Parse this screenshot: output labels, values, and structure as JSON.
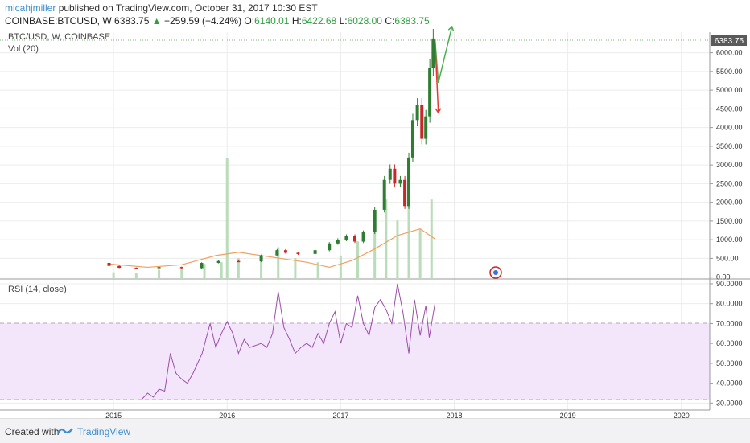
{
  "header": {
    "author": "micahjmiller",
    "published": "published on TradingView.com, October 31, 2017 10:30 EST",
    "symbol": "COINBASE:BTCUSD, W",
    "last": "6383.75",
    "change_arrow": "▲",
    "change": "+259.59 (+4.24%)",
    "o_label": "O:",
    "o_val": "6140.01",
    "h_label": "H:",
    "h_val": "6422.68",
    "l_label": "L:",
    "l_val": "6028.00",
    "c_label": "C:",
    "c_val": "6383.75"
  },
  "footer": {
    "created": "Created with",
    "brand": "TradingView"
  },
  "colors": {
    "up": "#2e7d32",
    "down": "#c62828",
    "volume": "#b9dcb9",
    "volume_ma": "#f0a060",
    "rsi": "#9c4fa8",
    "rsi_band": "#f3e6fb",
    "arrow_up": "#4caf50",
    "arrow_down": "#e53935",
    "price_tag": "#5a5a5a"
  },
  "chart_data": [
    {
      "type": "candlestick",
      "title": "BTC/USD, W, COINBASE",
      "subtitle": "Vol (20)",
      "last_price_label": "6383.75",
      "x_ticks": [
        "2015",
        "2016",
        "2017",
        "2018",
        "2019",
        "2020"
      ],
      "xlim": [
        2014.0,
        2020.25
      ],
      "y_ticks": [
        "6000.00",
        "5500.00",
        "5000.00",
        "4500.00",
        "4000.00",
        "3500.00",
        "3000.00",
        "2500.00",
        "2000.00",
        "1500.00",
        "1000.00",
        "500.00",
        "0.00"
      ],
      "ylim": [
        -50,
        6550
      ],
      "price_path": [
        [
          2014.92,
          380
        ],
        [
          2015.0,
          300
        ],
        [
          2015.1,
          250
        ],
        [
          2015.3,
          240
        ],
        [
          2015.5,
          270
        ],
        [
          2015.7,
          240
        ],
        [
          2015.85,
          380
        ],
        [
          2016.0,
          430
        ],
        [
          2016.2,
          420
        ],
        [
          2016.4,
          580
        ],
        [
          2016.48,
          720
        ],
        [
          2016.55,
          650
        ],
        [
          2016.7,
          620
        ],
        [
          2016.85,
          720
        ],
        [
          2016.95,
          900
        ],
        [
          2017.0,
          1000
        ],
        [
          2017.1,
          1100
        ],
        [
          2017.15,
          950
        ],
        [
          2017.25,
          1200
        ],
        [
          2017.35,
          1800
        ],
        [
          2017.42,
          2600
        ],
        [
          2017.45,
          2900
        ],
        [
          2017.5,
          2500
        ],
        [
          2017.55,
          2600
        ],
        [
          2017.58,
          1900
        ],
        [
          2017.62,
          3200
        ],
        [
          2017.65,
          4200
        ],
        [
          2017.7,
          4600
        ],
        [
          2017.73,
          3700
        ],
        [
          2017.77,
          4300
        ],
        [
          2017.8,
          5600
        ],
        [
          2017.83,
          6380
        ]
      ],
      "volume": [
        [
          2015.0,
          80
        ],
        [
          2015.2,
          70
        ],
        [
          2015.4,
          110
        ],
        [
          2015.6,
          120
        ],
        [
          2015.8,
          180
        ],
        [
          2015.95,
          200
        ],
        [
          2016.0,
          1450
        ],
        [
          2016.1,
          250
        ],
        [
          2016.3,
          220
        ],
        [
          2016.45,
          380
        ],
        [
          2016.6,
          250
        ],
        [
          2016.8,
          200
        ],
        [
          2017.0,
          280
        ],
        [
          2017.15,
          450
        ],
        [
          2017.3,
          600
        ],
        [
          2017.4,
          950
        ],
        [
          2017.5,
          700
        ],
        [
          2017.6,
          900
        ],
        [
          2017.7,
          600
        ],
        [
          2017.8,
          950
        ]
      ],
      "volume_ma": [
        [
          2014.95,
          180
        ],
        [
          2015.3,
          140
        ],
        [
          2015.6,
          170
        ],
        [
          2015.9,
          280
        ],
        [
          2016.1,
          320
        ],
        [
          2016.4,
          260
        ],
        [
          2016.7,
          200
        ],
        [
          2016.9,
          140
        ],
        [
          2017.1,
          220
        ],
        [
          2017.3,
          360
        ],
        [
          2017.5,
          520
        ],
        [
          2017.7,
          600
        ],
        [
          2017.83,
          480
        ]
      ],
      "projection_up": [
        [
          2017.83,
          6380
        ],
        [
          2017.86,
          5200
        ],
        [
          2017.98,
          6700
        ]
      ],
      "projection_down": [
        [
          2017.83,
          6380
        ],
        [
          2017.86,
          4400
        ]
      ]
    },
    {
      "type": "line",
      "title": "RSI (14, close)",
      "x_ticks": [
        "2015",
        "2016",
        "2017",
        "2018",
        "2019",
        "2020"
      ],
      "xlim": [
        2014.0,
        2020.25
      ],
      "y_ticks": [
        "90.0000",
        "80.0000",
        "70.0000",
        "60.0000",
        "50.0000",
        "40.0000",
        "30.0000"
      ],
      "ylim": [
        26.5,
        92
      ],
      "band": [
        30,
        70
      ],
      "series": [
        {
          "values": [
            [
              2015.25,
              32
            ],
            [
              2015.3,
              35
            ],
            [
              2015.35,
              33
            ],
            [
              2015.4,
              37
            ],
            [
              2015.45,
              36
            ],
            [
              2015.5,
              55
            ],
            [
              2015.55,
              45
            ],
            [
              2015.6,
              42
            ],
            [
              2015.65,
              40
            ],
            [
              2015.7,
              45
            ],
            [
              2015.78,
              55
            ],
            [
              2015.85,
              70
            ],
            [
              2015.9,
              58
            ],
            [
              2015.95,
              65
            ],
            [
              2016.0,
              71
            ],
            [
              2016.05,
              65
            ],
            [
              2016.1,
              55
            ],
            [
              2016.15,
              62
            ],
            [
              2016.2,
              58
            ],
            [
              2016.3,
              60
            ],
            [
              2016.35,
              58
            ],
            [
              2016.4,
              65
            ],
            [
              2016.45,
              86
            ],
            [
              2016.5,
              68
            ],
            [
              2016.55,
              62
            ],
            [
              2016.6,
              55
            ],
            [
              2016.65,
              58
            ],
            [
              2016.7,
              60
            ],
            [
              2016.75,
              58
            ],
            [
              2016.8,
              65
            ],
            [
              2016.85,
              60
            ],
            [
              2016.9,
              70
            ],
            [
              2016.95,
              76
            ],
            [
              2017.0,
              60
            ],
            [
              2017.05,
              70
            ],
            [
              2017.1,
              68
            ],
            [
              2017.15,
              84
            ],
            [
              2017.2,
              70
            ],
            [
              2017.25,
              64
            ],
            [
              2017.3,
              78
            ],
            [
              2017.35,
              82
            ],
            [
              2017.4,
              77
            ],
            [
              2017.45,
              70
            ],
            [
              2017.5,
              90
            ],
            [
              2017.55,
              75
            ],
            [
              2017.6,
              55
            ],
            [
              2017.65,
              82
            ],
            [
              2017.7,
              64
            ],
            [
              2017.75,
              79
            ],
            [
              2017.78,
              63
            ],
            [
              2017.83,
              80
            ]
          ]
        }
      ]
    }
  ]
}
